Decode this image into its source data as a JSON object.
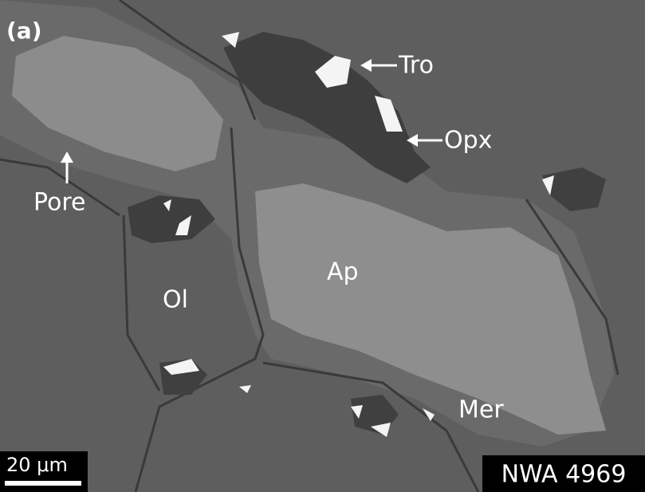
{
  "panel_label": "(a)",
  "labels": {
    "tro": "Tro",
    "opx": "Opx",
    "pore": "Pore",
    "ap": "Ap",
    "ol": "Ol",
    "mer": "Mer"
  },
  "scale_bar": "20 μm",
  "sample": "NWA 4969"
}
